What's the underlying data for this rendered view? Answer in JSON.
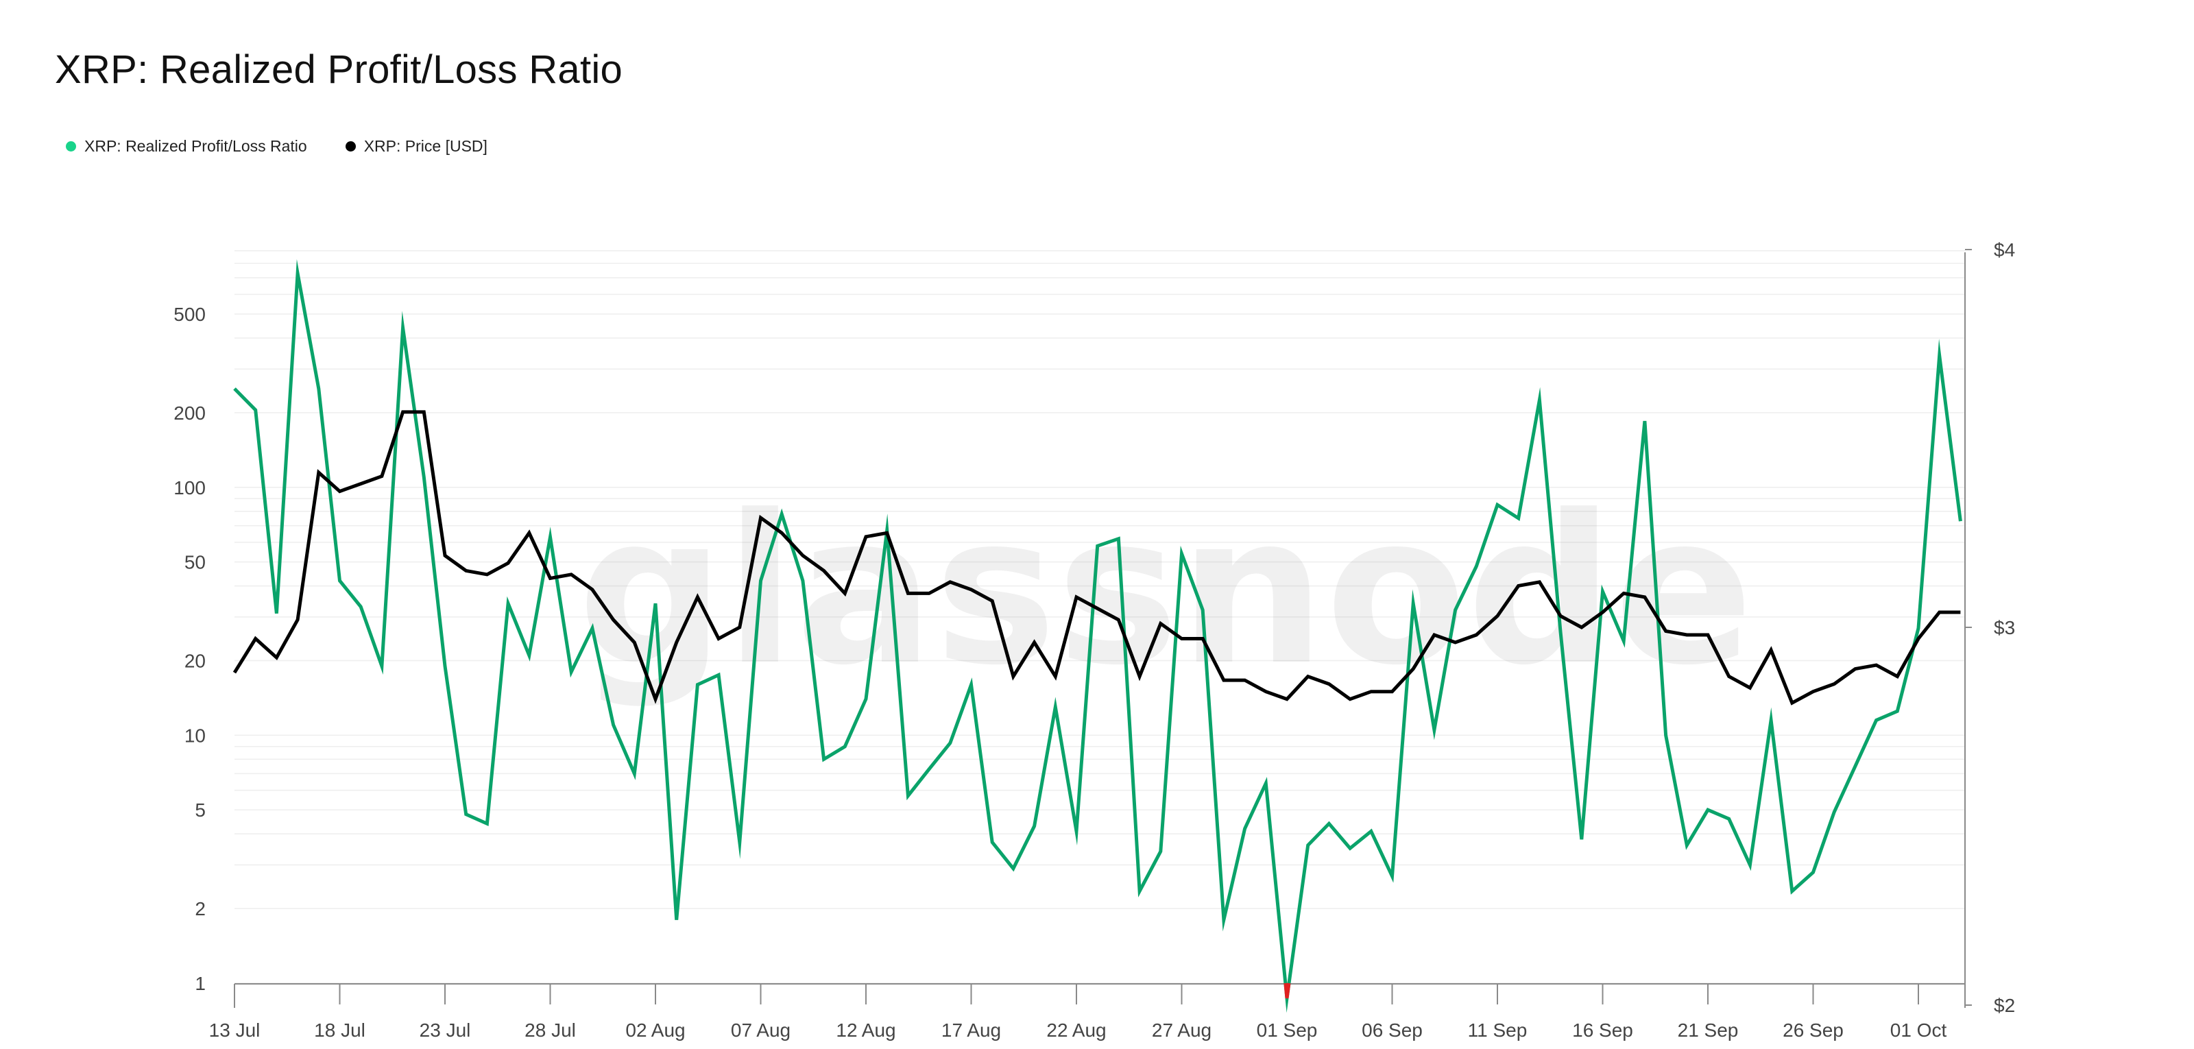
{
  "title": "XRP: Realized Profit/Loss Ratio",
  "watermark": "glassnode",
  "chart_data": {
    "type": "line",
    "title": "XRP: Realized Profit/Loss Ratio",
    "x_tick_labels": [
      "13 Jul",
      "18 Jul",
      "23 Jul",
      "28 Jul",
      "02 Aug",
      "07 Aug",
      "12 Aug",
      "17 Aug",
      "22 Aug",
      "27 Aug",
      "01 Sep",
      "06 Sep",
      "11 Sep",
      "16 Sep",
      "21 Sep",
      "26 Sep",
      "01 Oct"
    ],
    "x_start": "13 Jul",
    "x_end": "04 Oct",
    "y_left": {
      "scale": "log",
      "ticks": [
        1,
        2,
        5,
        10,
        20,
        50,
        100,
        200,
        500
      ],
      "tick_labels": [
        "1",
        "2",
        "5",
        "10",
        "20",
        "50",
        "100",
        "200",
        "500"
      ]
    },
    "y_right": {
      "scale": "linear",
      "range": [
        2,
        4
      ],
      "ticks": [
        2,
        3,
        4
      ],
      "tick_labels": [
        "$2",
        "$3",
        "$4"
      ]
    },
    "grid": true,
    "legend": "top-left",
    "threshold": 1,
    "series": [
      {
        "name": "XRP: Realized Profit/Loss Ratio",
        "axis": "left",
        "color": "#0aa36a",
        "legend_color": "#19d38a",
        "below_threshold_color": "#e02020",
        "values": [
          250,
          205,
          31,
          730,
          250,
          42,
          33,
          19,
          440,
          110,
          19,
          4.8,
          4.4,
          34,
          21,
          63,
          18,
          27,
          11,
          7,
          34,
          1.8,
          16,
          17.5,
          3.7,
          42,
          78,
          42,
          8,
          9,
          14,
          67,
          5.7,
          7.3,
          9.3,
          16,
          3.7,
          2.9,
          4.3,
          13,
          4.1,
          58,
          62,
          2.35,
          3.4,
          54,
          32,
          1.8,
          4.2,
          6.4,
          0.87,
          3.6,
          4.4,
          3.5,
          4.1,
          2.7,
          34,
          10.5,
          32,
          48,
          85,
          75,
          225,
          26,
          3.8,
          38,
          24,
          185,
          10,
          3.6,
          5,
          4.6,
          3,
          11.5,
          2.35,
          2.8,
          4.9,
          7.5,
          11.5,
          12.5,
          27,
          340,
          73
        ]
      },
      {
        "name": "XRP: Price [USD]",
        "axis": "right",
        "color": "#000000",
        "values": [
          2.88,
          2.97,
          2.92,
          3.02,
          3.41,
          3.36,
          3.38,
          3.4,
          3.57,
          3.57,
          3.19,
          3.15,
          3.14,
          3.17,
          3.25,
          3.13,
          3.14,
          3.1,
          3.02,
          2.96,
          2.81,
          2.96,
          3.08,
          2.97,
          3.0,
          3.29,
          3.25,
          3.19,
          3.15,
          3.09,
          3.24,
          3.25,
          3.09,
          3.09,
          3.12,
          3.1,
          3.07,
          2.87,
          2.96,
          2.87,
          3.08,
          3.05,
          3.02,
          2.87,
          3.01,
          2.97,
          2.97,
          2.86,
          2.86,
          2.83,
          2.81,
          2.87,
          2.85,
          2.81,
          2.83,
          2.83,
          2.89,
          2.98,
          2.96,
          2.98,
          3.03,
          3.11,
          3.12,
          3.03,
          3.0,
          3.04,
          3.09,
          3.08,
          2.99,
          2.98,
          2.98,
          2.87,
          2.84,
          2.94,
          2.8,
          2.83,
          2.85,
          2.89,
          2.9,
          2.87,
          2.97,
          3.04,
          3.04
        ]
      }
    ]
  }
}
